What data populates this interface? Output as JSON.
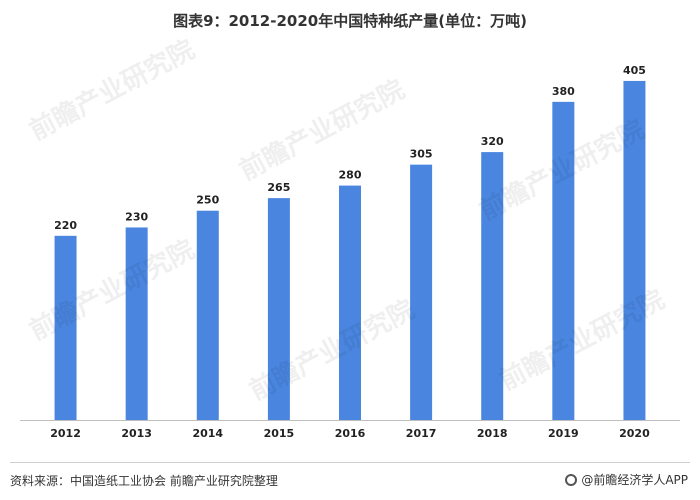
{
  "page": {
    "title": "图表9：2012-2020年中国特种纸产量(单位：万吨)",
    "source": "资料来源：中国造纸工业协会 前瞻产业研究院整理",
    "brand": "@前瞻经济学人APP",
    "watermark": "前瞻产业研究院"
  },
  "chart_data": {
    "type": "bar",
    "title": "图表9：2012-2020年中国特种纸产量(单位：万吨)",
    "categories": [
      "2012",
      "2013",
      "2014",
      "2015",
      "2016",
      "2017",
      "2018",
      "2019",
      "2020"
    ],
    "values": [
      220,
      230,
      250,
      265,
      280,
      305,
      320,
      380,
      405
    ],
    "ylim": [
      0,
      430
    ],
    "grid": false,
    "data_labels": true,
    "bar_color": "#4a86e0",
    "axis_color": "#bfbfbf"
  }
}
